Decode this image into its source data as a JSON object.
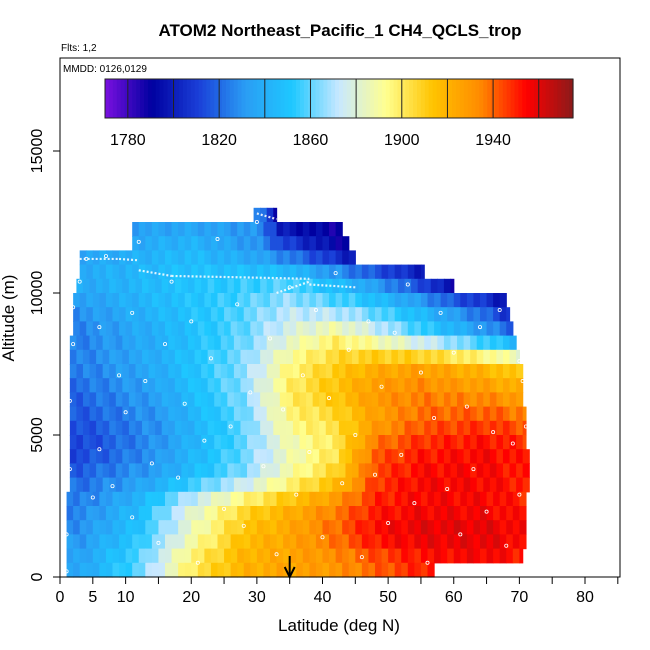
{
  "chart_data": {
    "type": "heatmap",
    "title": "ATOM2 Northeast_Pacific_1 CH4_QCLS_trop",
    "flights_text": "Flts: 1,2",
    "dates_text": "MMDD: 0126,0129",
    "xlabel": "Latitude (deg N)",
    "ylabel": "Altitude (m)",
    "xlim": [
      0,
      85
    ],
    "ylim": [
      0,
      17500
    ],
    "x_ticks": [
      0,
      5,
      10,
      20,
      30,
      40,
      50,
      60,
      70,
      80
    ],
    "x_minor_ticks": [
      15,
      25,
      35,
      45,
      55,
      65,
      75,
      85
    ],
    "y_ticks": [
      0,
      5000,
      10000,
      15000
    ],
    "colorbar": {
      "min": 1770,
      "max": 1975,
      "labels": [
        1780,
        1820,
        1860,
        1900,
        1940
      ],
      "boundaries": [
        1780,
        1800,
        1820,
        1840,
        1860,
        1880,
        1900,
        1920,
        1940,
        1960
      ],
      "colors": [
        "#7a10e0",
        "#0000a0",
        "#1a3fd8",
        "#2a9df4",
        "#1ec8ff",
        "#c8e8ff",
        "#ffff90",
        "#ffc400",
        "#ff8c00",
        "#ff0000",
        "#8b1a1a"
      ]
    },
    "arrow_latitude": 35,
    "altitude_band_lat_ranges": [
      {
        "alt": 12750,
        "lat": [
          29.5,
          33
        ]
      },
      {
        "alt": 12250,
        "lat": [
          11,
          43
        ]
      },
      {
        "alt": 11750,
        "lat": [
          11,
          44
        ]
      },
      {
        "alt": 11250,
        "lat": [
          3,
          45
        ]
      },
      {
        "alt": 10750,
        "lat": [
          3,
          55.5
        ]
      },
      {
        "alt": 10250,
        "lat": [
          2.5,
          60
        ]
      },
      {
        "alt": 9750,
        "lat": [
          2,
          68
        ]
      },
      {
        "alt": 9250,
        "lat": [
          2,
          68.5
        ]
      },
      {
        "alt": 8750,
        "lat": [
          2,
          69
        ]
      },
      {
        "alt": 8250,
        "lat": [
          1.5,
          69.5
        ]
      },
      {
        "alt": 7750,
        "lat": [
          1.5,
          70
        ]
      },
      {
        "alt": 7250,
        "lat": [
          1.5,
          70.5
        ]
      },
      {
        "alt": 6750,
        "lat": [
          1.5,
          70.5
        ]
      },
      {
        "alt": 6250,
        "lat": [
          1.5,
          70.5
        ]
      },
      {
        "alt": 5750,
        "lat": [
          1.5,
          71
        ]
      },
      {
        "alt": 5250,
        "lat": [
          1.5,
          71
        ]
      },
      {
        "alt": 4750,
        "lat": [
          1.5,
          71
        ]
      },
      {
        "alt": 4250,
        "lat": [
          1.5,
          71.5
        ]
      },
      {
        "alt": 3750,
        "lat": [
          1.5,
          71.5
        ]
      },
      {
        "alt": 3250,
        "lat": [
          1.5,
          71.5
        ]
      },
      {
        "alt": 2750,
        "lat": [
          1,
          71
        ]
      },
      {
        "alt": 2250,
        "lat": [
          1,
          71
        ]
      },
      {
        "alt": 1750,
        "lat": [
          1,
          71
        ]
      },
      {
        "alt": 1250,
        "lat": [
          1,
          71
        ]
      },
      {
        "alt": 750,
        "lat": [
          1,
          70.5
        ]
      },
      {
        "alt": 250,
        "lat": [
          1,
          57
        ]
      }
    ],
    "band_height_m": 500,
    "column_width_deg": 1,
    "value_samples": [
      {
        "alt": 12750,
        "lat": [
          30,
          33
        ],
        "values": [
          1830,
          1800,
          1790,
          1785
        ]
      },
      {
        "alt": 11500,
        "lat": [
          5,
          20,
          30,
          40,
          45
        ],
        "values": [
          1835,
          1845,
          1830,
          1800,
          1785
        ]
      },
      {
        "alt": 10500,
        "lat": [
          5,
          20,
          35,
          45,
          55,
          60
        ],
        "values": [
          1840,
          1850,
          1855,
          1835,
          1805,
          1780
        ]
      },
      {
        "alt": 9500,
        "lat": [
          3,
          15,
          25,
          35,
          45,
          55,
          65,
          68
        ],
        "values": [
          1830,
          1845,
          1855,
          1870,
          1860,
          1840,
          1815,
          1800
        ]
      },
      {
        "alt": 8500,
        "lat": [
          3,
          15,
          28,
          35,
          42,
          48,
          55,
          65,
          69
        ],
        "values": [
          1825,
          1840,
          1860,
          1880,
          1895,
          1880,
          1860,
          1835,
          1825
        ]
      },
      {
        "alt": 7500,
        "lat": [
          3,
          15,
          28,
          35,
          42,
          48,
          55,
          65,
          70
        ],
        "values": [
          1825,
          1840,
          1865,
          1895,
          1910,
          1920,
          1925,
          1915,
          1905
        ]
      },
      {
        "alt": 6500,
        "lat": [
          3,
          15,
          28,
          35,
          42,
          48,
          55,
          65,
          70
        ],
        "values": [
          1820,
          1835,
          1865,
          1900,
          1915,
          1930,
          1935,
          1930,
          1925
        ]
      },
      {
        "alt": 5500,
        "lat": [
          3,
          15,
          28,
          35,
          42,
          48,
          55,
          65,
          71
        ],
        "values": [
          1815,
          1830,
          1860,
          1895,
          1905,
          1925,
          1940,
          1945,
          1940
        ]
      },
      {
        "alt": 4500,
        "lat": [
          3,
          15,
          28,
          35,
          42,
          48,
          55,
          65,
          71
        ],
        "values": [
          1810,
          1830,
          1860,
          1885,
          1900,
          1940,
          1950,
          1955,
          1950
        ]
      },
      {
        "alt": 3500,
        "lat": [
          3,
          15,
          28,
          35,
          42,
          48,
          55,
          65,
          71
        ],
        "values": [
          1820,
          1835,
          1865,
          1890,
          1910,
          1945,
          1955,
          1955,
          1950
        ]
      },
      {
        "alt": 2500,
        "lat": [
          3,
          12,
          20,
          28,
          35,
          42,
          48,
          55,
          65,
          71
        ],
        "values": [
          1825,
          1845,
          1880,
          1905,
          1920,
          1935,
          1950,
          1955,
          1955,
          1950
        ]
      },
      {
        "alt": 1500,
        "lat": [
          3,
          12,
          20,
          28,
          35,
          42,
          48,
          55,
          65,
          71
        ],
        "values": [
          1830,
          1850,
          1885,
          1915,
          1925,
          1940,
          1955,
          1960,
          1960,
          1955
        ]
      },
      {
        "alt": 500,
        "lat": [
          3,
          12,
          20,
          28,
          35,
          42,
          48,
          55,
          65,
          70
        ],
        "values": [
          1835,
          1860,
          1900,
          1920,
          1925,
          1930,
          1940,
          1950,
          1955,
          1950
        ]
      }
    ],
    "flight_track_segments": [
      {
        "lat": [
          30,
          33
        ],
        "alt": [
          12800,
          12600
        ]
      },
      {
        "lat": [
          3,
          9
        ],
        "alt": [
          11200,
          11200
        ]
      },
      {
        "lat": [
          9,
          12
        ],
        "alt": [
          11200,
          11150
        ]
      },
      {
        "lat": [
          12,
          17
        ],
        "alt": [
          10800,
          10600
        ]
      },
      {
        "lat": [
          17,
          28
        ],
        "alt": [
          10600,
          10550
        ]
      },
      {
        "lat": [
          28,
          38
        ],
        "alt": [
          10550,
          10500
        ]
      },
      {
        "lat": [
          33,
          38
        ],
        "alt": [
          10000,
          10400
        ]
      },
      {
        "lat": [
          38,
          45
        ],
        "alt": [
          10300,
          10200
        ]
      }
    ],
    "scatter_points": [
      [
        1,
        200
      ],
      [
        1,
        1500
      ],
      [
        1.5,
        3800
      ],
      [
        1.5,
        6200
      ],
      [
        2,
        8200
      ],
      [
        2,
        9500
      ],
      [
        3,
        10400
      ],
      [
        4,
        11200
      ],
      [
        5,
        2800
      ],
      [
        6,
        4500
      ],
      [
        6,
        8800
      ],
      [
        7,
        11300
      ],
      [
        8,
        3200
      ],
      [
        9,
        7100
      ],
      [
        10,
        5800
      ],
      [
        11,
        2100
      ],
      [
        11,
        9300
      ],
      [
        12,
        11800
      ],
      [
        13,
        6900
      ],
      [
        14,
        4000
      ],
      [
        15,
        1200
      ],
      [
        16,
        8200
      ],
      [
        17,
        10400
      ],
      [
        18,
        3500
      ],
      [
        19,
        6100
      ],
      [
        20,
        9000
      ],
      [
        21,
        500
      ],
      [
        22,
        4800
      ],
      [
        23,
        7700
      ],
      [
        24,
        11900
      ],
      [
        25,
        2400
      ],
      [
        26,
        5300
      ],
      [
        27,
        9600
      ],
      [
        28,
        1800
      ],
      [
        29,
        6500
      ],
      [
        30,
        12500
      ],
      [
        31,
        3900
      ],
      [
        32,
        8400
      ],
      [
        33,
        800
      ],
      [
        34,
        5900
      ],
      [
        35,
        10200
      ],
      [
        36,
        2900
      ],
      [
        37,
        7100
      ],
      [
        38,
        4400
      ],
      [
        39,
        9400
      ],
      [
        40,
        1400
      ],
      [
        41,
        6300
      ],
      [
        42,
        10700
      ],
      [
        43,
        3300
      ],
      [
        44,
        8000
      ],
      [
        45,
        5000
      ],
      [
        46,
        700
      ],
      [
        47,
        9000
      ],
      [
        48,
        3600
      ],
      [
        49,
        6700
      ],
      [
        50,
        1900
      ],
      [
        51,
        8600
      ],
      [
        52,
        4300
      ],
      [
        53,
        10300
      ],
      [
        54,
        2600
      ],
      [
        55,
        7200
      ],
      [
        56,
        500
      ],
      [
        57,
        5600
      ],
      [
        58,
        9300
      ],
      [
        59,
        3100
      ],
      [
        60,
        7900
      ],
      [
        61,
        1500
      ],
      [
        62,
        6000
      ],
      [
        63,
        3800
      ],
      [
        64,
        8800
      ],
      [
        65,
        2300
      ],
      [
        66,
        5100
      ],
      [
        67,
        9400
      ],
      [
        68,
        1100
      ],
      [
        69,
        4700
      ],
      [
        70,
        7600
      ],
      [
        70,
        2900
      ],
      [
        71,
        5300
      ],
      [
        70.5,
        6900
      ]
    ]
  }
}
